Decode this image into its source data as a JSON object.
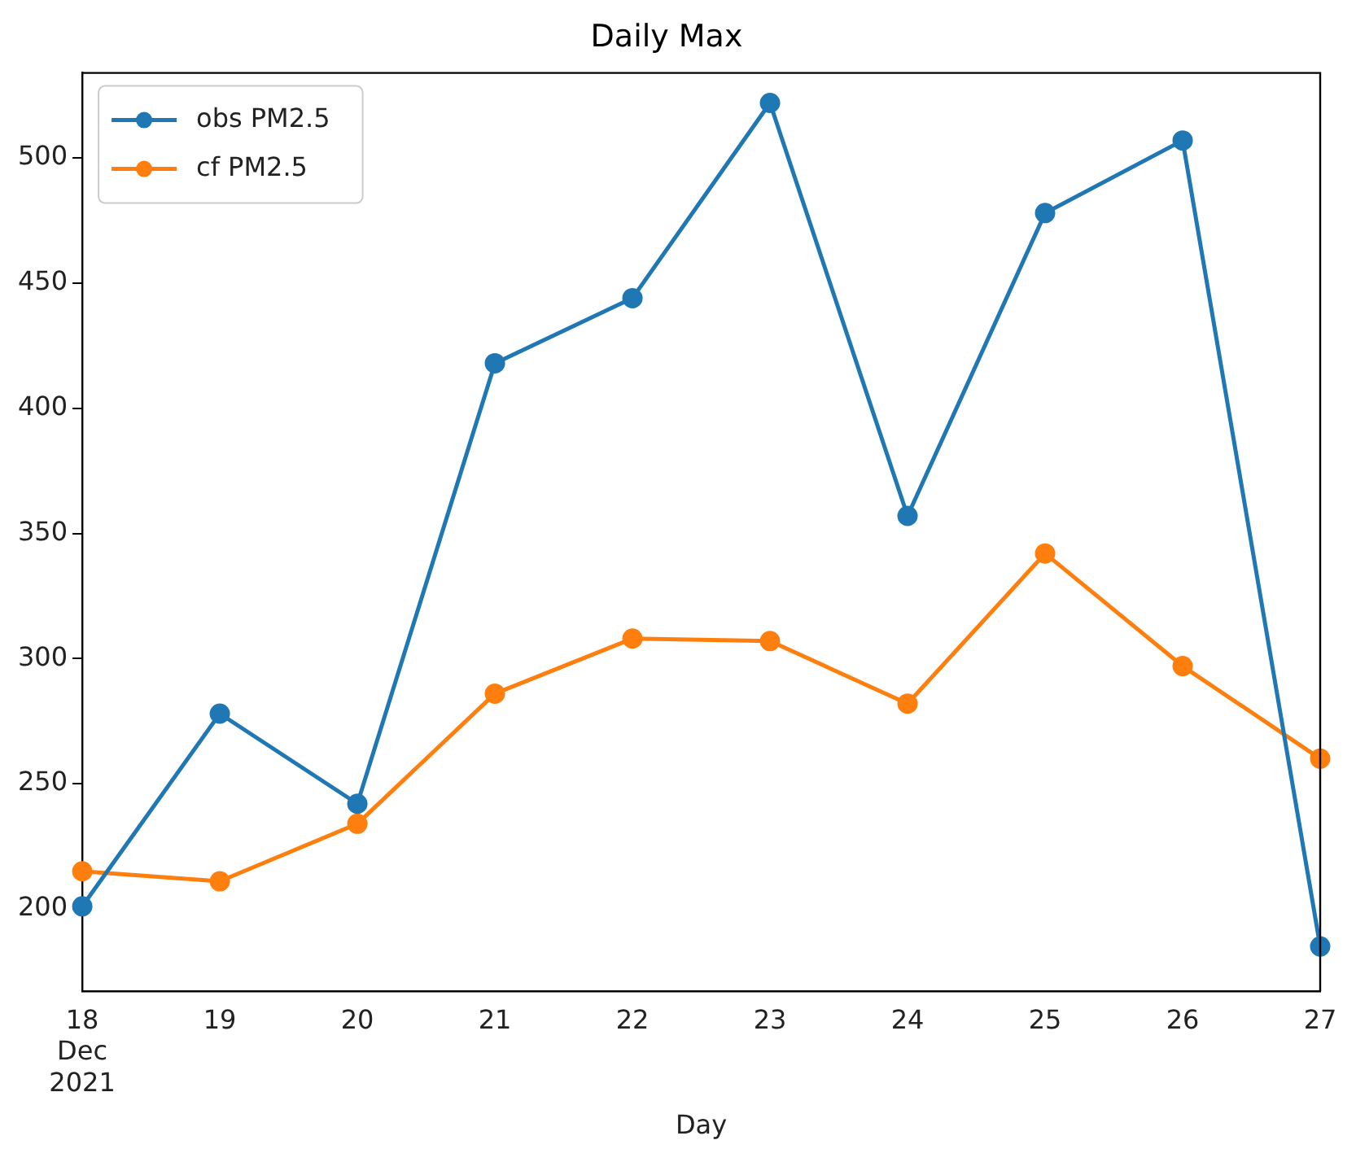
{
  "chart_data": {
    "type": "line",
    "title": "Daily Max",
    "xlabel": "Day",
    "x": [
      "2021-12-18",
      "2021-12-19",
      "2021-12-20",
      "2021-12-21",
      "2021-12-22",
      "2021-12-23",
      "2021-12-24",
      "2021-12-25",
      "2021-12-26",
      "2021-12-27"
    ],
    "series": [
      {
        "name": "obs PM2.5",
        "color": "#1f77b4",
        "values": [
          201,
          278,
          242,
          418,
          444,
          522,
          357,
          478,
          507,
          185
        ]
      },
      {
        "name": "cf PM2.5",
        "color": "#ff7f0e",
        "values": [
          215,
          211,
          234,
          286,
          308,
          307,
          282,
          342,
          297,
          260
        ]
      }
    ],
    "xlim": [
      "2021-12-18",
      "2021-12-27"
    ],
    "xticks": [
      {
        "value": "2021-12-18",
        "label": "18\nDec\n2021"
      },
      {
        "value": "2021-12-19",
        "label": "19"
      },
      {
        "value": "2021-12-20",
        "label": "20"
      },
      {
        "value": "2021-12-21",
        "label": "21"
      },
      {
        "value": "2021-12-22",
        "label": "22"
      },
      {
        "value": "2021-12-23",
        "label": "23"
      },
      {
        "value": "2021-12-24",
        "label": "24"
      },
      {
        "value": "2021-12-25",
        "label": "25"
      },
      {
        "value": "2021-12-26",
        "label": "26"
      },
      {
        "value": "2021-12-27",
        "label": "27"
      }
    ],
    "ylim": [
      167,
      534
    ],
    "yticks": [
      200,
      250,
      300,
      350,
      400,
      450,
      500
    ],
    "grid": false,
    "legend": "top left",
    "marker": "circle",
    "line_style": "solid"
  }
}
